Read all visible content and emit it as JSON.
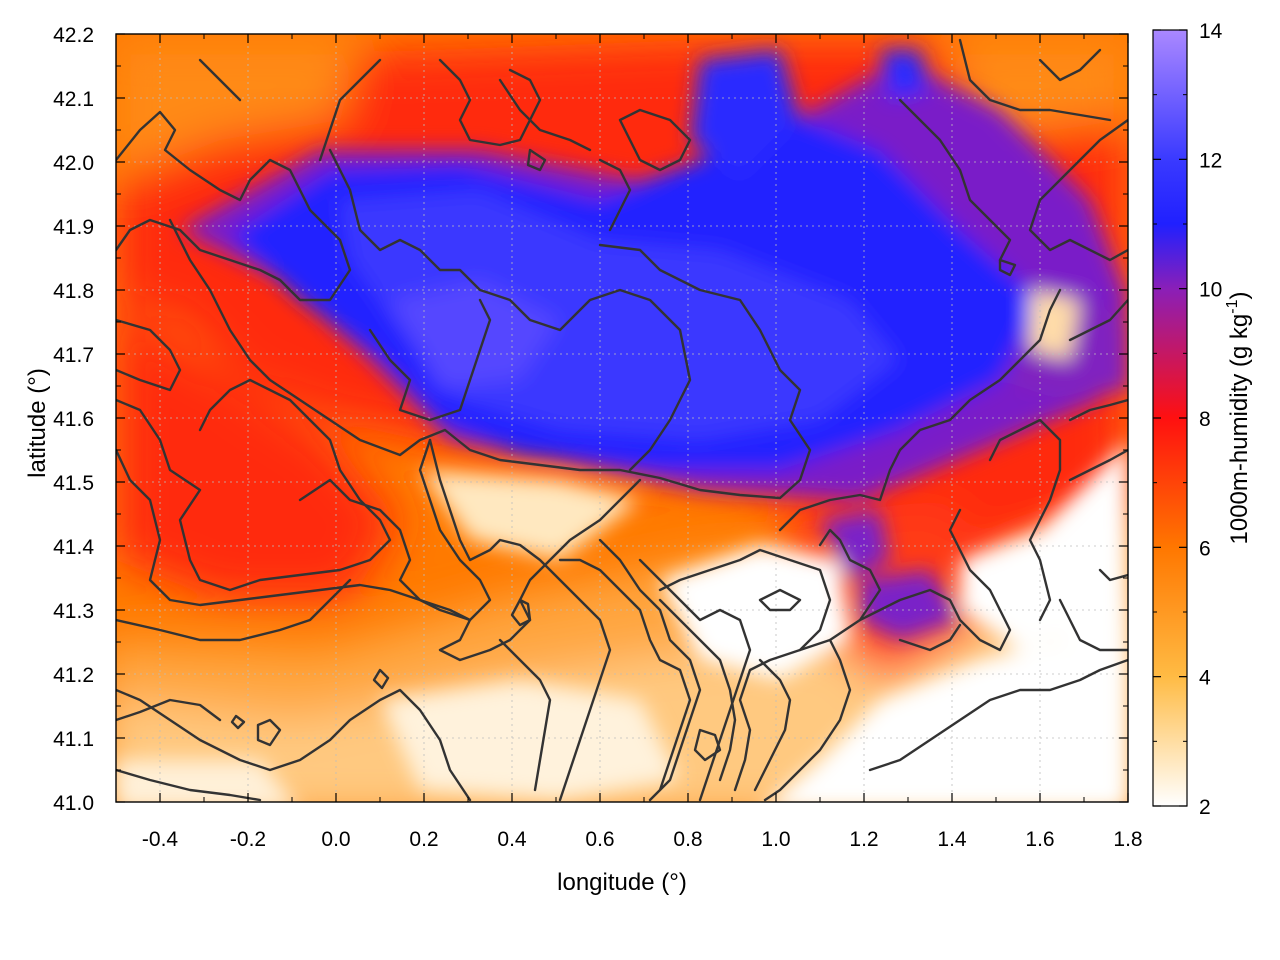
{
  "chart_data": {
    "type": "heatmap",
    "title": "",
    "xlabel": "longitude (°)",
    "ylabel": "latitude (°)",
    "xlim": [
      -0.5,
      1.8
    ],
    "ylim": [
      41.0,
      42.2
    ],
    "x_ticks": [
      "-0.4",
      "-0.2",
      "0.0",
      "0.2",
      "0.4",
      "0.6",
      "0.8",
      "1.0",
      "1.2",
      "1.4",
      "1.6",
      "1.8"
    ],
    "y_ticks": [
      "41.0",
      "41.1",
      "41.2",
      "41.3",
      "41.4",
      "41.5",
      "41.6",
      "41.7",
      "41.8",
      "41.9",
      "42.0",
      "42.1",
      "42.2"
    ],
    "grid": true,
    "colorbar": {
      "label": "1000m-humidity (g kg",
      "label_superscript": "-1",
      "label_suffix": ")",
      "range": [
        2,
        14
      ],
      "ticks": [
        "2",
        "4",
        "6",
        "8",
        "10",
        "12",
        "14"
      ],
      "stops": [
        {
          "value": 2,
          "color": "#ffffff"
        },
        {
          "value": 4,
          "color": "#ffbb44"
        },
        {
          "value": 6,
          "color": "#ff7700"
        },
        {
          "value": 8,
          "color": "#ff1010"
        },
        {
          "value": 10,
          "color": "#8a1fb8"
        },
        {
          "value": 11,
          "color": "#2020ff"
        },
        {
          "value": 12,
          "color": "#3a3aff"
        },
        {
          "value": 14,
          "color": "#aa88ff"
        }
      ]
    },
    "moist_core": [
      {
        "lon": 0.55,
        "lat": 41.72,
        "value": 11.8
      },
      {
        "lon": 0.3,
        "lat": 41.85,
        "value": 11.5
      },
      {
        "lon": 0.85,
        "lat": 41.78,
        "value": 11.2
      },
      {
        "lon": 0.95,
        "lat": 42.05,
        "value": 11.0
      },
      {
        "lon": 1.25,
        "lat": 41.75,
        "value": 10.6
      },
      {
        "lon": -0.05,
        "lat": 41.88,
        "value": 10.4
      },
      {
        "lon": 1.3,
        "lat": 41.35,
        "value": 10.2
      },
      {
        "lon": 1.7,
        "lat": 41.75,
        "value": 9.8
      }
    ],
    "dry_region": [
      {
        "lon": 1.45,
        "lat": 41.1,
        "value": 2.2
      },
      {
        "lon": 0.95,
        "lat": 41.3,
        "value": 2.4
      },
      {
        "lon": 0.5,
        "lat": 41.05,
        "value": 2.8
      },
      {
        "lon": 1.7,
        "lat": 41.35,
        "value": 2.6
      }
    ]
  }
}
